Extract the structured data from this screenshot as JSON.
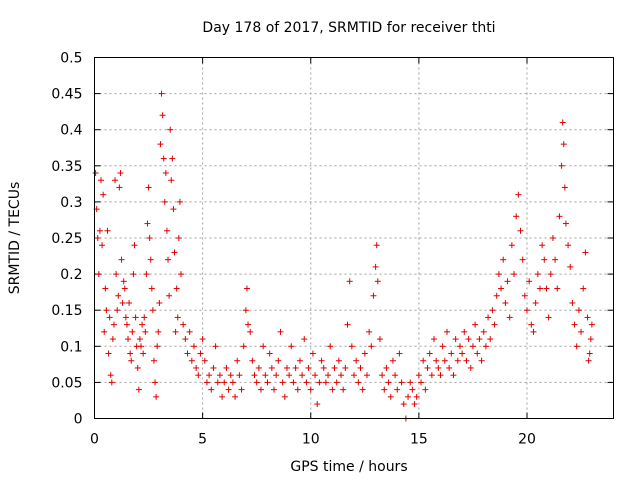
{
  "chart_data": {
    "type": "scatter",
    "title": "Day 178 of 2017, SRMTID for receiver thti",
    "xlabel": "GPS time / hours",
    "ylabel": "SRMTID / TECUs",
    "xlim": [
      0,
      24
    ],
    "ylim": [
      0,
      0.5
    ],
    "x_ticks": [
      0,
      5,
      10,
      15,
      20
    ],
    "x_tick_labels": [
      "0",
      "5",
      "10",
      "15",
      "20"
    ],
    "y_ticks": [
      0,
      0.05,
      0.1,
      0.15,
      0.2,
      0.25,
      0.3,
      0.35,
      0.4,
      0.45,
      0.5
    ],
    "y_tick_labels": [
      "0",
      "0.05",
      "0.1",
      "0.15",
      "0.2",
      "0.25",
      "0.3",
      "0.35",
      "0.4",
      "0.45",
      "0.5"
    ],
    "grid": true,
    "marker": "+",
    "color": "#e00000",
    "series": [
      {
        "name": "SRMTID",
        "points": [
          [
            0.05,
            0.34
          ],
          [
            0.1,
            0.29
          ],
          [
            0.15,
            0.25
          ],
          [
            0.2,
            0.2
          ],
          [
            0.25,
            0.26
          ],
          [
            0.3,
            0.33
          ],
          [
            0.35,
            0.24
          ],
          [
            0.4,
            0.31
          ],
          [
            0.45,
            0.12
          ],
          [
            0.5,
            0.18
          ],
          [
            0.55,
            0.15
          ],
          [
            0.6,
            0.26
          ],
          [
            0.65,
            0.09
          ],
          [
            0.7,
            0.14
          ],
          [
            0.75,
            0.06
          ],
          [
            0.8,
            0.05
          ],
          [
            0.85,
            0.11
          ],
          [
            0.9,
            0.13
          ],
          [
            0.95,
            0.33
          ],
          [
            1.0,
            0.2
          ],
          [
            1.05,
            0.15
          ],
          [
            1.1,
            0.17
          ],
          [
            1.15,
            0.32
          ],
          [
            1.2,
            0.34
          ],
          [
            1.25,
            0.22
          ],
          [
            1.3,
            0.16
          ],
          [
            1.35,
            0.19
          ],
          [
            1.4,
            0.18
          ],
          [
            1.45,
            0.14
          ],
          [
            1.5,
            0.13
          ],
          [
            1.55,
            0.11
          ],
          [
            1.6,
            0.16
          ],
          [
            1.65,
            0.09
          ],
          [
            1.7,
            0.08
          ],
          [
            1.75,
            0.12
          ],
          [
            1.8,
            0.2
          ],
          [
            1.85,
            0.24
          ],
          [
            1.9,
            0.14
          ],
          [
            1.95,
            0.1
          ],
          [
            2.0,
            0.07
          ],
          [
            2.05,
            0.04
          ],
          [
            2.1,
            0.11
          ],
          [
            2.15,
            0.1
          ],
          [
            2.2,
            0.13
          ],
          [
            2.25,
            0.09
          ],
          [
            2.3,
            0.14
          ],
          [
            2.35,
            0.12
          ],
          [
            2.4,
            0.2
          ],
          [
            2.45,
            0.27
          ],
          [
            2.5,
            0.32
          ],
          [
            2.55,
            0.25
          ],
          [
            2.6,
            0.22
          ],
          [
            2.65,
            0.18
          ],
          [
            2.7,
            0.15
          ],
          [
            2.75,
            0.08
          ],
          [
            2.8,
            0.05
          ],
          [
            2.85,
            0.03
          ],
          [
            2.9,
            0.1
          ],
          [
            2.95,
            0.12
          ],
          [
            3.0,
            0.16
          ],
          [
            3.05,
            0.38
          ],
          [
            3.1,
            0.45
          ],
          [
            3.15,
            0.42
          ],
          [
            3.2,
            0.36
          ],
          [
            3.25,
            0.3
          ],
          [
            3.3,
            0.34
          ],
          [
            3.35,
            0.26
          ],
          [
            3.4,
            0.22
          ],
          [
            3.45,
            0.17
          ],
          [
            3.5,
            0.4
          ],
          [
            3.55,
            0.33
          ],
          [
            3.6,
            0.36
          ],
          [
            3.65,
            0.29
          ],
          [
            3.7,
            0.23
          ],
          [
            3.75,
            0.12
          ],
          [
            3.8,
            0.18
          ],
          [
            3.85,
            0.14
          ],
          [
            3.9,
            0.25
          ],
          [
            3.95,
            0.3
          ],
          [
            4.0,
            0.2
          ],
          [
            4.1,
            0.13
          ],
          [
            4.2,
            0.11
          ],
          [
            4.3,
            0.09
          ],
          [
            4.4,
            0.12
          ],
          [
            4.5,
            0.08
          ],
          [
            4.6,
            0.1
          ],
          [
            4.7,
            0.07
          ],
          [
            4.8,
            0.06
          ],
          [
            4.9,
            0.09
          ],
          [
            5.0,
            0.11
          ],
          [
            5.1,
            0.08
          ],
          [
            5.2,
            0.05
          ],
          [
            5.3,
            0.06
          ],
          [
            5.4,
            0.04
          ],
          [
            5.5,
            0.07
          ],
          [
            5.6,
            0.1
          ],
          [
            5.7,
            0.05
          ],
          [
            5.8,
            0.06
          ],
          [
            5.9,
            0.03
          ],
          [
            6.0,
            0.05
          ],
          [
            6.1,
            0.07
          ],
          [
            6.2,
            0.04
          ],
          [
            6.3,
            0.06
          ],
          [
            6.4,
            0.05
          ],
          [
            6.5,
            0.03
          ],
          [
            6.6,
            0.08
          ],
          [
            6.7,
            0.06
          ],
          [
            6.8,
            0.04
          ],
          [
            6.9,
            0.1
          ],
          [
            7.0,
            0.15
          ],
          [
            7.05,
            0.18
          ],
          [
            7.1,
            0.13
          ],
          [
            7.2,
            0.12
          ],
          [
            7.3,
            0.08
          ],
          [
            7.4,
            0.06
          ],
          [
            7.5,
            0.05
          ],
          [
            7.6,
            0.07
          ],
          [
            7.7,
            0.04
          ],
          [
            7.8,
            0.1
          ],
          [
            7.9,
            0.06
          ],
          [
            8.0,
            0.05
          ],
          [
            8.1,
            0.09
          ],
          [
            8.2,
            0.07
          ],
          [
            8.3,
            0.04
          ],
          [
            8.4,
            0.06
          ],
          [
            8.5,
            0.08
          ],
          [
            8.6,
            0.12
          ],
          [
            8.7,
            0.05
          ],
          [
            8.8,
            0.03
          ],
          [
            8.9,
            0.07
          ],
          [
            9.0,
            0.06
          ],
          [
            9.1,
            0.1
          ],
          [
            9.2,
            0.05
          ],
          [
            9.3,
            0.07
          ],
          [
            9.4,
            0.04
          ],
          [
            9.5,
            0.08
          ],
          [
            9.6,
            0.06
          ],
          [
            9.7,
            0.11
          ],
          [
            9.8,
            0.05
          ],
          [
            9.9,
            0.07
          ],
          [
            10.0,
            0.04
          ],
          [
            10.1,
            0.09
          ],
          [
            10.2,
            0.06
          ],
          [
            10.3,
            0.02
          ],
          [
            10.4,
            0.05
          ],
          [
            10.5,
            0.08
          ],
          [
            10.6,
            0.07
          ],
          [
            10.7,
            0.05
          ],
          [
            10.8,
            0.06
          ],
          [
            10.9,
            0.1
          ],
          [
            11.0,
            0.04
          ],
          [
            11.1,
            0.07
          ],
          [
            11.2,
            0.05
          ],
          [
            11.3,
            0.08
          ],
          [
            11.4,
            0.06
          ],
          [
            11.5,
            0.04
          ],
          [
            11.6,
            0.07
          ],
          [
            11.7,
            0.13
          ],
          [
            11.8,
            0.19
          ],
          [
            11.9,
            0.1
          ],
          [
            12.0,
            0.06
          ],
          [
            12.1,
            0.08
          ],
          [
            12.2,
            0.05
          ],
          [
            12.3,
            0.07
          ],
          [
            12.4,
            0.04
          ],
          [
            12.5,
            0.09
          ],
          [
            12.6,
            0.06
          ],
          [
            12.7,
            0.12
          ],
          [
            12.8,
            0.1
          ],
          [
            12.9,
            0.17
          ],
          [
            13.0,
            0.21
          ],
          [
            13.05,
            0.24
          ],
          [
            13.1,
            0.19
          ],
          [
            13.2,
            0.11
          ],
          [
            13.3,
            0.06
          ],
          [
            13.4,
            0.04
          ],
          [
            13.5,
            0.07
          ],
          [
            13.6,
            0.05
          ],
          [
            13.7,
            0.03
          ],
          [
            13.8,
            0.08
          ],
          [
            13.9,
            0.06
          ],
          [
            14.0,
            0.04
          ],
          [
            14.1,
            0.09
          ],
          [
            14.2,
            0.05
          ],
          [
            14.3,
            0.02
          ],
          [
            14.4,
            0.0
          ],
          [
            14.5,
            0.03
          ],
          [
            14.6,
            0.05
          ],
          [
            14.7,
            0.04
          ],
          [
            14.8,
            0.02
          ],
          [
            14.9,
            0.03
          ],
          [
            15.0,
            0.06
          ],
          [
            15.1,
            0.05
          ],
          [
            15.2,
            0.08
          ],
          [
            15.3,
            0.04
          ],
          [
            15.4,
            0.07
          ],
          [
            15.5,
            0.09
          ],
          [
            15.6,
            0.06
          ],
          [
            15.7,
            0.11
          ],
          [
            15.8,
            0.08
          ],
          [
            15.9,
            0.07
          ],
          [
            16.0,
            0.06
          ],
          [
            16.1,
            0.1
          ],
          [
            16.2,
            0.08
          ],
          [
            16.3,
            0.12
          ],
          [
            16.4,
            0.07
          ],
          [
            16.5,
            0.09
          ],
          [
            16.6,
            0.06
          ],
          [
            16.7,
            0.11
          ],
          [
            16.8,
            0.08
          ],
          [
            16.9,
            0.1
          ],
          [
            17.0,
            0.09
          ],
          [
            17.1,
            0.12
          ],
          [
            17.2,
            0.08
          ],
          [
            17.3,
            0.11
          ],
          [
            17.4,
            0.07
          ],
          [
            17.5,
            0.1
          ],
          [
            17.6,
            0.13
          ],
          [
            17.7,
            0.09
          ],
          [
            17.8,
            0.11
          ],
          [
            17.9,
            0.08
          ],
          [
            18.0,
            0.12
          ],
          [
            18.1,
            0.1
          ],
          [
            18.2,
            0.14
          ],
          [
            18.3,
            0.11
          ],
          [
            18.4,
            0.15
          ],
          [
            18.5,
            0.13
          ],
          [
            18.6,
            0.17
          ],
          [
            18.7,
            0.2
          ],
          [
            18.8,
            0.18
          ],
          [
            18.9,
            0.22
          ],
          [
            19.0,
            0.16
          ],
          [
            19.1,
            0.19
          ],
          [
            19.2,
            0.14
          ],
          [
            19.3,
            0.24
          ],
          [
            19.4,
            0.2
          ],
          [
            19.5,
            0.28
          ],
          [
            19.6,
            0.31
          ],
          [
            19.7,
            0.26
          ],
          [
            19.8,
            0.22
          ],
          [
            19.9,
            0.17
          ],
          [
            20.0,
            0.15
          ],
          [
            20.1,
            0.19
          ],
          [
            20.2,
            0.13
          ],
          [
            20.3,
            0.12
          ],
          [
            20.4,
            0.16
          ],
          [
            20.5,
            0.2
          ],
          [
            20.6,
            0.18
          ],
          [
            20.7,
            0.24
          ],
          [
            20.8,
            0.22
          ],
          [
            20.9,
            0.18
          ],
          [
            21.0,
            0.14
          ],
          [
            21.1,
            0.2
          ],
          [
            21.2,
            0.25
          ],
          [
            21.3,
            0.22
          ],
          [
            21.4,
            0.18
          ],
          [
            21.5,
            0.28
          ],
          [
            21.6,
            0.35
          ],
          [
            21.65,
            0.41
          ],
          [
            21.7,
            0.38
          ],
          [
            21.75,
            0.32
          ],
          [
            21.8,
            0.27
          ],
          [
            21.9,
            0.24
          ],
          [
            22.0,
            0.21
          ],
          [
            22.1,
            0.16
          ],
          [
            22.2,
            0.13
          ],
          [
            22.3,
            0.1
          ],
          [
            22.4,
            0.15
          ],
          [
            22.5,
            0.12
          ],
          [
            22.6,
            0.18
          ],
          [
            22.7,
            0.23
          ],
          [
            22.8,
            0.14
          ],
          [
            22.85,
            0.08
          ],
          [
            22.9,
            0.09
          ],
          [
            22.95,
            0.11
          ],
          [
            23.0,
            0.13
          ]
        ]
      }
    ]
  }
}
